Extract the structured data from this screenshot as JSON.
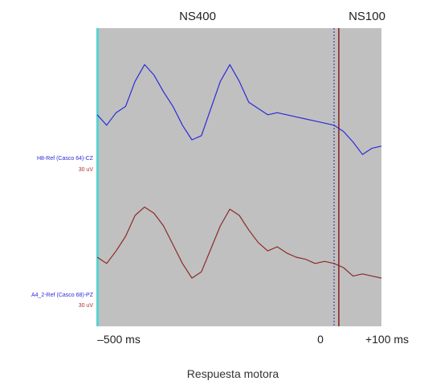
{
  "chart_data": {
    "type": "line",
    "title": "",
    "xlabel": "Respuesta motora",
    "ylabel": "",
    "xlim": [
      -500,
      100
    ],
    "grid": false,
    "region_labels": [
      "NS400",
      "NS100"
    ],
    "x_tick_labels": [
      "–500 ms",
      "0",
      "+100 ms"
    ],
    "markers": [
      {
        "x": 0,
        "style": "dotted",
        "color": "#5a5aa8"
      },
      {
        "x": 10,
        "style": "solid",
        "color": "#8b1a1a"
      }
    ],
    "colors": {
      "panel": "#c0c0c0",
      "left_edge": "#5ad3d3",
      "series_1": "#2b2bd9",
      "series_2": "#8b2a2a"
    },
    "series": [
      {
        "name": "H8-Ref (Casco 64)-CZ",
        "scale": "30 uV",
        "x": [
          -500,
          -480,
          -460,
          -440,
          -420,
          -400,
          -380,
          -360,
          -340,
          -320,
          -300,
          -280,
          -260,
          -240,
          -220,
          -200,
          -180,
          -160,
          -140,
          -120,
          -100,
          -80,
          -60,
          -40,
          -20,
          0,
          20,
          40,
          60,
          80,
          100
        ],
        "values": [
          2,
          -3,
          3,
          6,
          18,
          26,
          21,
          13,
          6,
          -3,
          -10,
          -8,
          5,
          18,
          26,
          18,
          8,
          5,
          2,
          3,
          2,
          1,
          0,
          -1,
          -2,
          -3,
          -6,
          -11,
          -17,
          -14,
          -13
        ]
      },
      {
        "name": "A4_2-Ref (Casco 68)-PZ",
        "scale": "30 uV",
        "x": [
          -500,
          -480,
          -460,
          -440,
          -420,
          -400,
          -380,
          -360,
          -340,
          -320,
          -300,
          -280,
          -260,
          -240,
          -220,
          -200,
          -180,
          -160,
          -140,
          -120,
          -100,
          -80,
          -60,
          -40,
          -20,
          0,
          20,
          40,
          60,
          80,
          100
        ],
        "values": [
          0,
          -3,
          3,
          10,
          20,
          24,
          21,
          15,
          6,
          -3,
          -10,
          -7,
          4,
          15,
          23,
          20,
          13,
          7,
          3,
          5,
          2,
          0,
          -1,
          -3,
          -2,
          -3,
          -5,
          -9,
          -8,
          -9,
          -10
        ]
      }
    ]
  }
}
